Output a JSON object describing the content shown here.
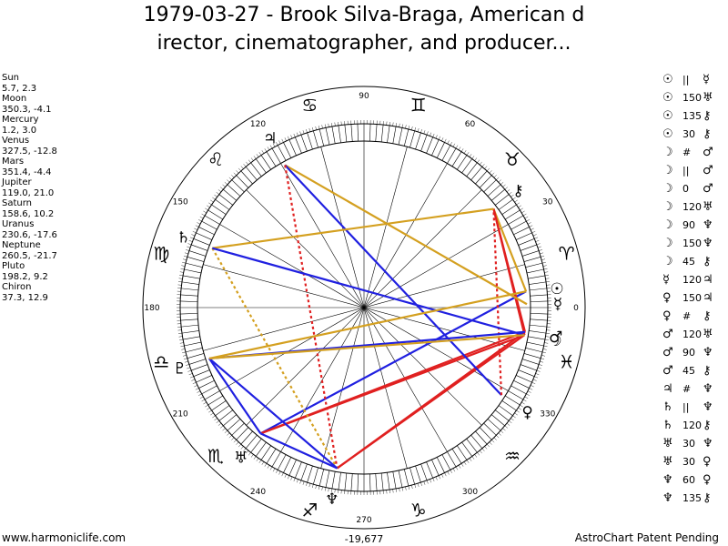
{
  "title_line1": "1979-03-27 - Brook Silva-Braga, American d",
  "title_line2": "irector, cinematographer, and producer...",
  "planets": [
    {
      "name": "Sun",
      "glyph": "☉",
      "pos": "5.7, 2.3",
      "lon": 5.7,
      "color": "#000000"
    },
    {
      "name": "Moon",
      "glyph": "☽",
      "pos": "350.3, -4.1",
      "lon": 350.3,
      "color": "#000000"
    },
    {
      "name": "Mercury",
      "glyph": "☿",
      "pos": "1.2, 3.0",
      "lon": 1.2,
      "color": "#000000"
    },
    {
      "name": "Venus",
      "glyph": "♀",
      "pos": "327.5, -12.8",
      "lon": 327.5,
      "color": "#000000"
    },
    {
      "name": "Mars",
      "glyph": "♂",
      "pos": "351.4, -4.4",
      "lon": 351.4,
      "color": "#000000"
    },
    {
      "name": "Jupiter",
      "glyph": "♃",
      "pos": "119.0, 21.0",
      "lon": 119.0,
      "color": "#000000"
    },
    {
      "name": "Saturn",
      "glyph": "♄",
      "pos": "158.6, 10.2",
      "lon": 158.6,
      "color": "#000000"
    },
    {
      "name": "Uranus",
      "glyph": "♅",
      "pos": "230.6, -17.6",
      "lon": 230.6,
      "color": "#000000"
    },
    {
      "name": "Neptune",
      "glyph": "♆",
      "pos": "260.5, -21.7",
      "lon": 260.5,
      "color": "#000000"
    },
    {
      "name": "Pluto",
      "glyph": "♇",
      "pos": "198.2, 9.2",
      "lon": 198.2,
      "color": "#000000"
    },
    {
      "name": "Chiron",
      "glyph": "⚷",
      "pos": "37.3, 12.9",
      "lon": 37.3,
      "color": "#000000"
    }
  ],
  "aspects": [
    {
      "a": "☉",
      "sym": "||",
      "b": "☿"
    },
    {
      "a": "☉",
      "sym": "150",
      "b": "♅"
    },
    {
      "a": "☉",
      "sym": "135",
      "b": "⚷"
    },
    {
      "a": "☉",
      "sym": "30",
      "b": "⚷"
    },
    {
      "a": "☽",
      "sym": "#",
      "b": "♂"
    },
    {
      "a": "☽",
      "sym": "||",
      "b": "♂"
    },
    {
      "a": "☽",
      "sym": "0",
      "b": "♂"
    },
    {
      "a": "☽",
      "sym": "120",
      "b": "♅"
    },
    {
      "a": "☽",
      "sym": "90",
      "b": "♆"
    },
    {
      "a": "☽",
      "sym": "150",
      "b": "♆"
    },
    {
      "a": "☽",
      "sym": "45",
      "b": "⚷"
    },
    {
      "a": "☿",
      "sym": "120",
      "b": "♃"
    },
    {
      "a": "♀",
      "sym": "150",
      "b": "♃"
    },
    {
      "a": "♀",
      "sym": "#",
      "b": "⚷"
    },
    {
      "a": "♂",
      "sym": "120",
      "b": "♅"
    },
    {
      "a": "♂",
      "sym": "90",
      "b": "♆"
    },
    {
      "a": "♂",
      "sym": "45",
      "b": "⚷"
    },
    {
      "a": "♃",
      "sym": "#",
      "b": "♆"
    },
    {
      "a": "♄",
      "sym": "||",
      "b": "♆"
    },
    {
      "a": "♄",
      "sym": "120",
      "b": "⚷"
    },
    {
      "a": "♅",
      "sym": "30",
      "b": "♆"
    },
    {
      "a": "♅",
      "sym": "30",
      "b": "♀"
    },
    {
      "a": "♆",
      "sym": "60",
      "b": "♀"
    },
    {
      "a": "♆",
      "sym": "135",
      "b": "⚷"
    }
  ],
  "wheel": {
    "degree_labels": [
      "0",
      "30",
      "60",
      "90",
      "120",
      "150",
      "180",
      "210",
      "240",
      "270",
      "300",
      "330"
    ],
    "signs": [
      "♈",
      "♉",
      "♊",
      "♋",
      "♌",
      "♍",
      "♎",
      "♏",
      "♐",
      "♑",
      "♒",
      "♓"
    ],
    "center_label": "-19,677"
  },
  "aspect_lines": [
    {
      "from": "Sun",
      "to": "Chiron",
      "color": "#d4a020",
      "style": "solid"
    },
    {
      "from": "Sun",
      "to": "Uranus",
      "color": "#2020e0",
      "style": "solid"
    },
    {
      "from": "Moon",
      "to": "Uranus",
      "color": "#e02020",
      "style": "solid"
    },
    {
      "from": "Moon",
      "to": "Neptune",
      "color": "#e02020",
      "style": "solid"
    },
    {
      "from": "Moon",
      "to": "Chiron",
      "color": "#e02020",
      "style": "solid"
    },
    {
      "from": "Mars",
      "to": "Uranus",
      "color": "#e02020",
      "style": "solid"
    },
    {
      "from": "Mars",
      "to": "Neptune",
      "color": "#e02020",
      "style": "solid"
    },
    {
      "from": "Mars",
      "to": "Chiron",
      "color": "#e02020",
      "style": "solid"
    },
    {
      "from": "Mercury",
      "to": "Jupiter",
      "color": "#d4a020",
      "style": "solid"
    },
    {
      "from": "Venus",
      "to": "Jupiter",
      "color": "#2020e0",
      "style": "solid"
    },
    {
      "from": "Venus",
      "to": "Chiron",
      "color": "#e02020",
      "style": "dotted"
    },
    {
      "from": "Jupiter",
      "to": "Neptune",
      "color": "#e02020",
      "style": "dotted"
    },
    {
      "from": "Saturn",
      "to": "Neptune",
      "color": "#d4a020",
      "style": "dotted"
    },
    {
      "from": "Saturn",
      "to": "Chiron",
      "color": "#d4a020",
      "style": "solid"
    },
    {
      "from": "Saturn",
      "to": "Moon",
      "color": "#2020e0",
      "style": "solid"
    },
    {
      "from": "Uranus",
      "to": "Neptune",
      "color": "#2020e0",
      "style": "solid"
    },
    {
      "from": "Uranus",
      "to": "Pluto",
      "color": "#2020e0",
      "style": "solid"
    },
    {
      "from": "Neptune",
      "to": "Pluto",
      "color": "#2020e0",
      "style": "solid"
    },
    {
      "from": "Pluto",
      "to": "Mars",
      "color": "#2020e0",
      "style": "solid"
    },
    {
      "from": "Pluto",
      "to": "Sun",
      "color": "#d4a020",
      "style": "solid"
    },
    {
      "from": "Pluto",
      "to": "Moon",
      "color": "#d4a020",
      "style": "solid"
    }
  ],
  "footer_left": "www.harmoniclife.com",
  "footer_right": "AstroChart Patent Pending"
}
